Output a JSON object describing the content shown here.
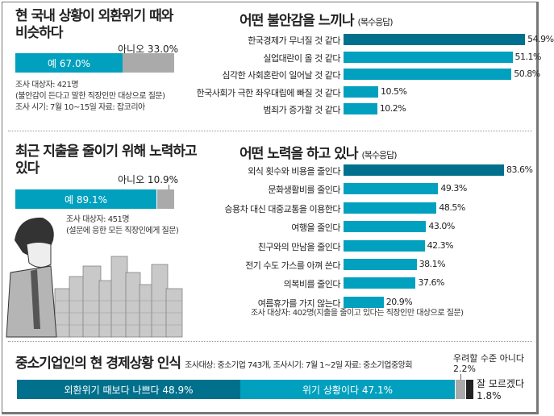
{
  "colors": {
    "primary": "#00a0be",
    "dark": "#00708c",
    "gray": "#aaaaaa",
    "black": "#222222"
  },
  "panel1": {
    "title_line1": "현 국내 상황이 외환위기 때와",
    "title_line2": "비슷하다",
    "yes_label": "예  67.0%",
    "no_label": "아니오  33.0%",
    "yes": 67.0,
    "no": 33.0,
    "notes": [
      "조사 대상자: 421명",
      "(불안감이 든다고 말한 직장인만 대상으로 질문)",
      "조사 시기: 7월 10~15일    자료: 잡코리아"
    ]
  },
  "panel2": {
    "title": "어떤 불안감을 느끼나",
    "subtitle": "(복수응답)"
  },
  "panel3": {
    "title_line1": "최근 지출을 줄이기 위해 노력하고",
    "title_line2": "있다",
    "yes_label": "예  89.1%",
    "no_label": "아니오  10.9%",
    "yes": 89.1,
    "no": 10.9,
    "notes": [
      "조사 대상자: 451명",
      "(설문에 응한 모든 직장인에게 질문)"
    ]
  },
  "panel4": {
    "title": "어떤 노력을 하고 있나",
    "subtitle": "(복수응답)",
    "note": "조사 대상자: 402명(지출을 줄이고 있다는 직장인만 대상으로 질문)"
  },
  "bottom": {
    "title": "중소기업인의 현 경제상황 인식",
    "source": "조사대상: 중소기업 743개, 조사시기: 7월 1~2일   자료: 중소기업중앙회",
    "labels": [
      "외환위기 때보다 나쁘다  48.9%",
      "위기 상황이다  47.1%",
      "우려할 수준 아니다",
      "2.2%",
      "잘 모르겠다",
      "1.8%"
    ]
  },
  "chart_data": [
    {
      "type": "bar",
      "orientation": "horizontal",
      "title": "어떤 불안감을 느끼나",
      "subtitle": "(복수응답)",
      "categories": [
        "한국경제가 무너질 것 같다",
        "실업대란이 올 것 같다",
        "심각한 사회혼란이 일어날 것 같다",
        "한국사회가 극한 좌우대립에 빠질 것 같다",
        "범죄가 증가할 것 같다"
      ],
      "values": [
        54.9,
        51.1,
        50.8,
        10.5,
        10.2
      ],
      "value_labels": [
        "54.9%",
        "51.1%",
        "50.8%",
        "10.5%",
        "10.2%"
      ]
    },
    {
      "type": "bar",
      "orientation": "horizontal",
      "title": "어떤 노력을 하고 있나",
      "subtitle": "(복수응답)",
      "categories": [
        "외식 횟수와 비용을 줄인다",
        "문화생활비를 줄인다",
        "승용차 대신 대중교통을 이용한다",
        "여행을 줄인다",
        "친구와의 만남을 줄인다",
        "전기 수도 가스를 아껴 쓴다",
        "의복비를 줄인다",
        "여름휴가를 가지 않는다"
      ],
      "values": [
        83.6,
        49.3,
        48.5,
        43.0,
        42.3,
        38.1,
        37.6,
        20.9
      ],
      "value_labels": [
        "83.6%",
        "49.3%",
        "48.5%",
        "43.0%",
        "42.3%",
        "38.1%",
        "37.6%",
        "20.9%"
      ]
    },
    {
      "type": "bar",
      "stacked": true,
      "title": "중소기업인의 현 경제상황 인식",
      "categories": [
        "외환위기 때보다 나쁘다",
        "위기 상황이다",
        "우려할 수준 아니다",
        "잘 모르겠다"
      ],
      "values": [
        48.9,
        47.1,
        2.2,
        1.8
      ]
    }
  ]
}
